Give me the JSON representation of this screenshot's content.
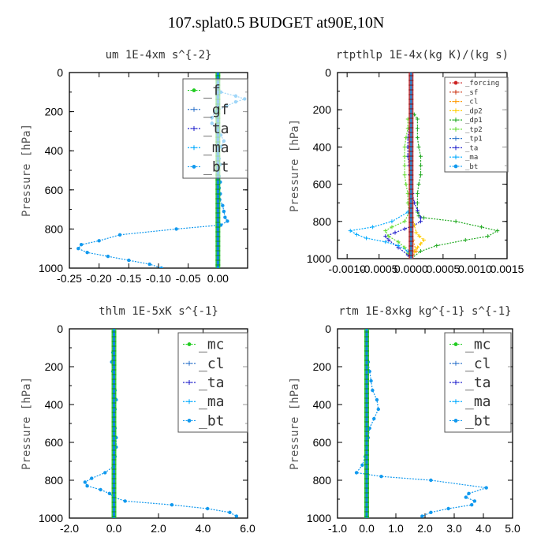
{
  "figure_title": "107.splat0.5  BUDGET at90E,10N",
  "chart_data": [
    {
      "type": "line",
      "title": "um   1E-4xm  s^{-2}",
      "ylabel": "Pressure [hPa]",
      "xlabel": "",
      "xlim": [
        -0.25,
        0.05
      ],
      "ylim": [
        1000,
        0
      ],
      "x_ticks": [
        "-0.25",
        "-0.20",
        "-0.15",
        "-0.10",
        "-0.05",
        "0.00"
      ],
      "x_tick_values": [
        -0.25,
        -0.2,
        -0.15,
        -0.1,
        -0.05,
        0.0
      ],
      "y_ticks": [
        "0",
        "200",
        "400",
        "600",
        "800",
        "1000"
      ],
      "legend_position": "top-right",
      "series": [
        {
          "name": "_f",
          "color": "#22cc22",
          "marker": "dot",
          "p": [
            0,
            1000
          ],
          "x": [
            0.0,
            0.0
          ]
        },
        {
          "name": "_gf",
          "color": "#3377cc",
          "marker": "cross",
          "p": [
            0,
            1000
          ],
          "x": [
            0.0,
            0.0
          ]
        },
        {
          "name": "_ta",
          "color": "#2222cc",
          "marker": "cross",
          "p": [
            0,
            1000
          ],
          "x": [
            0.0,
            0.0
          ]
        },
        {
          "name": "_ma",
          "color": "#00aaff",
          "marker": "cross",
          "p": [
            0,
            1000
          ],
          "x": [
            0.0,
            0.0
          ]
        },
        {
          "name": "_bt",
          "color": "#1199ee",
          "marker": "dot",
          "p": [
            25,
            50,
            75,
            100,
            120,
            135,
            150,
            170,
            200,
            230,
            260,
            290,
            320,
            350,
            380,
            410,
            440,
            470,
            500,
            530,
            560,
            590,
            620,
            650,
            680,
            710,
            740,
            760,
            780,
            800,
            830,
            860,
            880,
            900,
            920,
            940,
            960,
            980,
            1000
          ],
          "x": [
            0.0,
            0.0,
            0.0,
            0.005,
            0.03,
            0.045,
            0.03,
            0.015,
            -0.005,
            -0.01,
            -0.01,
            0.0,
            0.005,
            0.01,
            0.005,
            0.0,
            0.002,
            0.004,
            0.0,
            0.002,
            0.004,
            0.002,
            0.004,
            0.003,
            0.008,
            0.01,
            0.012,
            0.016,
            0.005,
            -0.07,
            -0.165,
            -0.2,
            -0.23,
            -0.235,
            -0.22,
            -0.185,
            -0.15,
            -0.115,
            -0.095
          ]
        }
      ]
    },
    {
      "type": "line",
      "title": "rtpthlp   1E-4x(kg K)/(kg s)",
      "ylabel": "Pressure [hPa]",
      "xlabel": "",
      "xlim": [
        -0.00115,
        0.0015
      ],
      "ylim": [
        1000,
        0
      ],
      "x_ticks": [
        "-0.0010",
        "-0.0005",
        "0.0000",
        "0.0005",
        "0.0010",
        "0.0015"
      ],
      "x_tick_values": [
        -0.001,
        -0.0005,
        0.0,
        0.0005,
        0.001,
        0.0015
      ],
      "y_ticks": [
        "0",
        "200",
        "400",
        "600",
        "800",
        "1000"
      ],
      "legend_position": "top-right",
      "series": [
        {
          "name": "_forcing",
          "color": "#cc2222",
          "marker": "dot",
          "p": [
            0,
            1000
          ],
          "x": [
            0.0,
            0.0
          ]
        },
        {
          "name": "_sf",
          "color": "#cc3311",
          "marker": "cross",
          "p": [
            0,
            1000
          ],
          "x": [
            0.0,
            0.0
          ]
        },
        {
          "name": "_cl",
          "color": "#ff9900",
          "marker": "cross",
          "p": [
            0,
            700,
            800,
            900,
            960,
            1000
          ],
          "x": [
            0.0,
            0.0,
            0.0,
            3e-05,
            8e-05,
            0.0
          ]
        },
        {
          "name": "_dp2",
          "color": "#ffcc00",
          "marker": "cross",
          "p": [
            0,
            600,
            700,
            780,
            820,
            860,
            880,
            900,
            920,
            940,
            960,
            980,
            1000
          ],
          "x": [
            0.0,
            0.0,
            0.0,
            2e-05,
            5e-05,
            8e-05,
            0.00013,
            0.0002,
            0.00015,
            0.0001,
            5e-05,
            0.0,
            0.0
          ]
        },
        {
          "name": "_dp1",
          "color": "#22aa22",
          "marker": "cross",
          "p": [
            225,
            250,
            300,
            350,
            400,
            450,
            500,
            550,
            600,
            650,
            700,
            750,
            770,
            780,
            800,
            830,
            850,
            880,
            900,
            930,
            960,
            1000
          ],
          "x": [
            5e-05,
            0.0001,
            0.0001,
            0.0001,
            0.00012,
            0.00015,
            0.00015,
            0.00015,
            0.00012,
            0.0001,
            0.0001,
            0.0001,
            0.00012,
            0.0002,
            0.0007,
            0.0011,
            0.00135,
            0.0012,
            0.00085,
            0.0004,
            0.00015,
            0.0
          ]
        },
        {
          "name": "_tp2",
          "color": "#66dd33",
          "marker": "cross",
          "p": [
            250,
            300,
            350,
            400,
            450,
            500,
            550,
            600,
            650,
            700,
            750,
            800,
            830,
            850,
            880,
            910,
            940,
            970,
            1000
          ],
          "x": [
            -5e-05,
            -5e-05,
            -8e-05,
            -0.0001,
            -0.0001,
            -0.0001,
            -0.0001,
            -8e-05,
            -5e-05,
            -5e-05,
            -3e-05,
            -0.0001,
            -0.0003,
            -0.0004,
            -0.00035,
            -0.0002,
            -0.0001,
            -5e-05,
            0.0
          ]
        },
        {
          "name": "_tp1",
          "color": "#3377cc",
          "marker": "cross",
          "p": [
            0,
            1000
          ],
          "x": [
            0.0,
            0.0
          ]
        },
        {
          "name": "_ta",
          "color": "#2222cc",
          "marker": "cross",
          "p": [
            300,
            350,
            400,
            450,
            500,
            550,
            600,
            650,
            700,
            740,
            780,
            800,
            820,
            840,
            860,
            880,
            900,
            940,
            980,
            1000
          ],
          "x": [
            -3e-05,
            -5e-05,
            -5e-05,
            -5e-05,
            -3e-05,
            -2e-05,
            0.0,
            2e-05,
            5e-05,
            0.0001,
            0.00015,
            0.00015,
            5e-05,
            -0.0001,
            -0.00025,
            -0.0004,
            -0.00035,
            -0.0002,
            -5e-05,
            0.0
          ]
        },
        {
          "name": "_ma",
          "color": "#00aaff",
          "marker": "cross",
          "p": [
            700,
            750,
            800,
            830,
            850,
            870,
            890,
            910,
            930,
            960,
            1000
          ],
          "x": [
            0.0,
            -5e-05,
            -0.0003,
            -0.0006,
            -0.00095,
            -0.00085,
            -0.0007,
            -0.0004,
            -0.0002,
            -5e-05,
            0.0
          ]
        },
        {
          "name": "_bt",
          "color": "#1199ee",
          "marker": "dot",
          "p": [
            0,
            1000
          ],
          "x": [
            0.0,
            0.0
          ]
        }
      ]
    },
    {
      "type": "line",
      "title": "thlm   1E-5xK  s^{-1}",
      "ylabel": "Pressure [hPa]",
      "xlabel": "",
      "xlim": [
        -2.0,
        6.0
      ],
      "ylim": [
        1000,
        0
      ],
      "x_ticks": [
        "-2.0",
        "0.0",
        "2.0",
        "4.0",
        "6.0"
      ],
      "x_tick_values": [
        -2.0,
        0.0,
        2.0,
        4.0,
        6.0
      ],
      "y_ticks": [
        "0",
        "200",
        "400",
        "600",
        "800",
        "1000"
      ],
      "legend_position": "top-right",
      "series": [
        {
          "name": "_mc",
          "color": "#22cc22",
          "marker": "dot",
          "p": [
            0,
            1000
          ],
          "x": [
            0.0,
            0.0
          ]
        },
        {
          "name": "_cl",
          "color": "#3377cc",
          "marker": "cross",
          "p": [
            0,
            1000
          ],
          "x": [
            0.0,
            0.0
          ]
        },
        {
          "name": "_ta",
          "color": "#2222cc",
          "marker": "cross",
          "p": [
            0,
            1000
          ],
          "x": [
            0.0,
            0.0
          ]
        },
        {
          "name": "_ma",
          "color": "#00aaff",
          "marker": "cross",
          "p": [
            0,
            1000
          ],
          "x": [
            0.0,
            0.0
          ]
        },
        {
          "name": "_bt",
          "color": "#1199ee",
          "marker": "dot",
          "p": [
            25,
            75,
            125,
            175,
            225,
            275,
            325,
            375,
            425,
            475,
            525,
            575,
            625,
            675,
            725,
            760,
            790,
            810,
            830,
            850,
            870,
            890,
            910,
            930,
            950,
            970,
            990
          ],
          "x": [
            0.0,
            0.0,
            -0.05,
            -0.1,
            -0.05,
            0.0,
            0.05,
            0.1,
            0.05,
            0.0,
            0.05,
            0.1,
            0.1,
            0.05,
            0.0,
            -0.4,
            -1.0,
            -1.3,
            -1.2,
            -0.6,
            -0.2,
            0.0,
            0.5,
            2.6,
            4.2,
            5.2,
            5.5
          ]
        }
      ]
    },
    {
      "type": "line",
      "title": "rtm   1E-8xkg  kg^{-1} s^{-1}",
      "ylabel": "Pressure [hPa]",
      "xlabel": "",
      "xlim": [
        -1.0,
        5.0
      ],
      "ylim": [
        1000,
        0
      ],
      "x_ticks": [
        "-1.0",
        "0.0",
        "1.0",
        "2.0",
        "3.0",
        "4.0",
        "5.0"
      ],
      "x_tick_values": [
        -1.0,
        0.0,
        1.0,
        2.0,
        3.0,
        4.0,
        5.0
      ],
      "y_ticks": [
        "0",
        "200",
        "400",
        "600",
        "800",
        "1000"
      ],
      "legend_position": "top-right",
      "series": [
        {
          "name": "_mc",
          "color": "#22cc22",
          "marker": "dot",
          "p": [
            0,
            1000
          ],
          "x": [
            0.0,
            0.0
          ]
        },
        {
          "name": "_cl",
          "color": "#3377cc",
          "marker": "cross",
          "p": [
            0,
            1000
          ],
          "x": [
            0.0,
            0.0
          ]
        },
        {
          "name": "_ta",
          "color": "#2222cc",
          "marker": "cross",
          "p": [
            0,
            1000
          ],
          "x": [
            0.0,
            0.0
          ]
        },
        {
          "name": "_ma",
          "color": "#00aaff",
          "marker": "cross",
          "p": [
            0,
            1000
          ],
          "x": [
            0.0,
            0.0
          ]
        },
        {
          "name": "_bt",
          "color": "#1199ee",
          "marker": "dot",
          "p": [
            25,
            75,
            125,
            175,
            225,
            275,
            325,
            375,
            425,
            475,
            525,
            575,
            625,
            675,
            720,
            760,
            780,
            800,
            840,
            870,
            890,
            910,
            930,
            950,
            970,
            990
          ],
          "x": [
            0.0,
            0.0,
            0.0,
            0.05,
            0.1,
            0.15,
            0.2,
            0.35,
            0.4,
            0.25,
            0.1,
            0.05,
            0.0,
            -0.05,
            -0.15,
            -0.35,
            0.5,
            2.2,
            4.1,
            3.5,
            3.4,
            3.7,
            3.6,
            2.8,
            2.2,
            1.9
          ]
        }
      ]
    }
  ]
}
